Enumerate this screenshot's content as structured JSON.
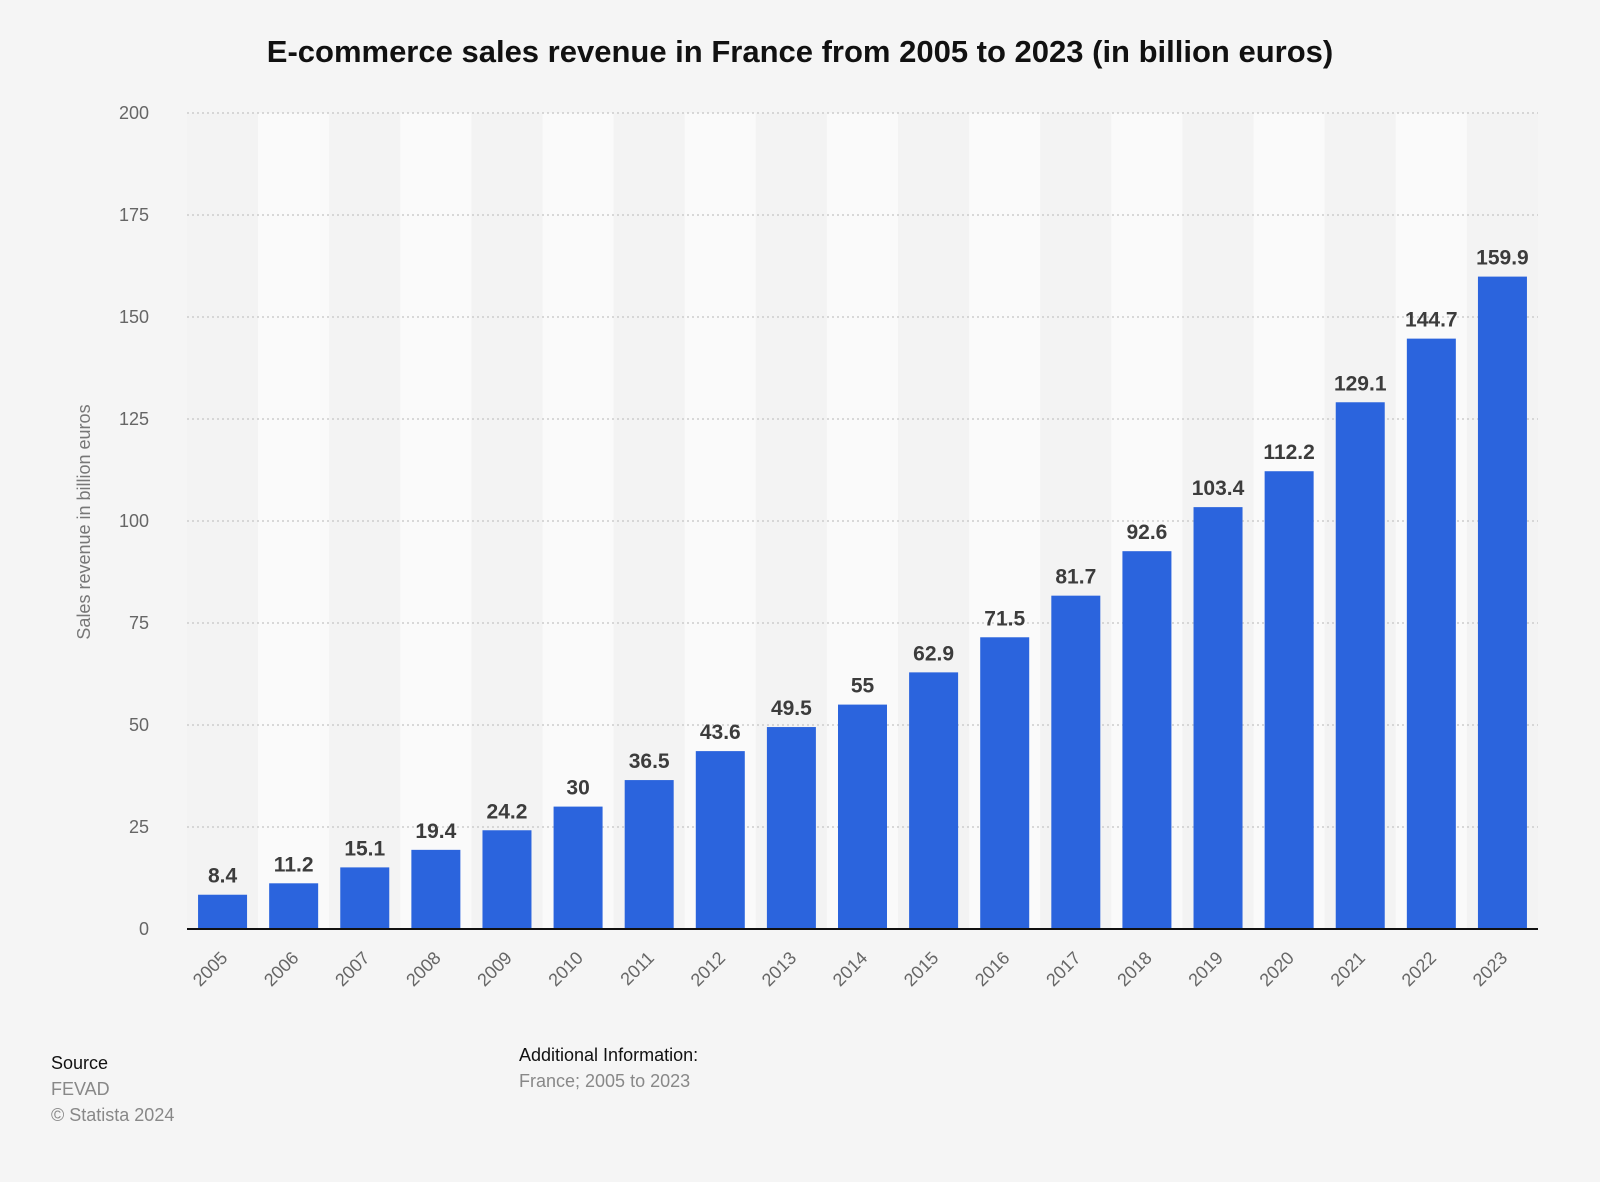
{
  "chart_data": {
    "type": "bar",
    "title": "E-commerce sales revenue in France from 2005 to 2023 (in billion euros)",
    "xlabel": "",
    "ylabel": "Sales revenue in billion euros",
    "ylim": [
      0,
      200
    ],
    "yticks": [
      0,
      25,
      50,
      75,
      100,
      125,
      150,
      175,
      200
    ],
    "grid": true,
    "categories": [
      "2005",
      "2006",
      "2007",
      "2008",
      "2009",
      "2010",
      "2011",
      "2012",
      "2013",
      "2014",
      "2015",
      "2016",
      "2017",
      "2018",
      "2019",
      "2020",
      "2021",
      "2022",
      "2023"
    ],
    "values": [
      8.4,
      11.2,
      15.1,
      19.4,
      24.2,
      30,
      36.5,
      43.6,
      49.5,
      55,
      62.9,
      71.5,
      81.7,
      92.6,
      103.4,
      112.2,
      129.1,
      144.7,
      159.9
    ],
    "bar_color": "#2b64dd"
  },
  "footer": {
    "source_heading": "Source",
    "source": "FEVAD",
    "copyright": "© Statista 2024",
    "additional_heading": "Additional Information:",
    "additional": "France; 2005 to 2023"
  }
}
